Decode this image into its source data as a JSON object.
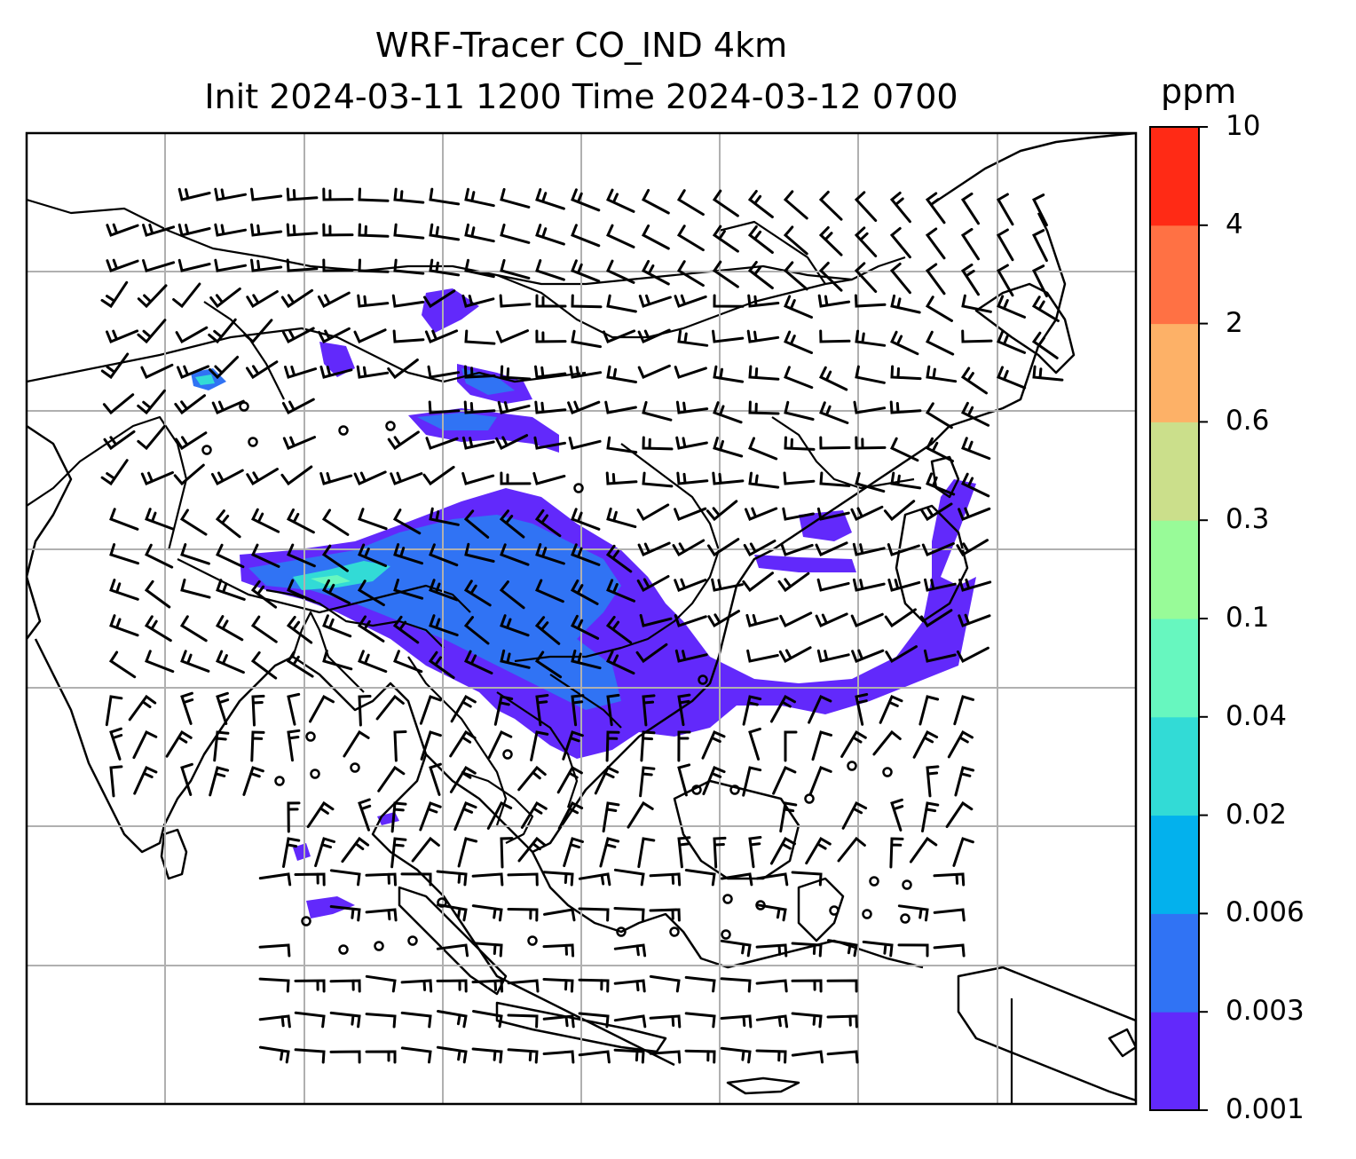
{
  "title": {
    "line1": "WRF-Tracer CO_IND 4km",
    "line2": "Init 2024-03-11 1200 Time 2024-03-12 0700"
  },
  "colorbar": {
    "unit": "ppm",
    "levels": [
      "0.001",
      "0.003",
      "0.006",
      "0.02",
      "0.04",
      "0.1",
      "0.3",
      "0.6",
      "2",
      "4",
      "10"
    ],
    "colors": [
      "#6229fb",
      "#3073f4",
      "#03b1ed",
      "#32dbd6",
      "#67f7bf",
      "#98fb98",
      "#cbdf8b",
      "#fdb167",
      "#ff7144",
      "#ff2a15"
    ]
  },
  "map": {
    "type": "filled-contour-with-wind-barbs",
    "gridlines": true,
    "coastline_color": "#000000",
    "gridline_color": "#b0b0b0"
  }
}
